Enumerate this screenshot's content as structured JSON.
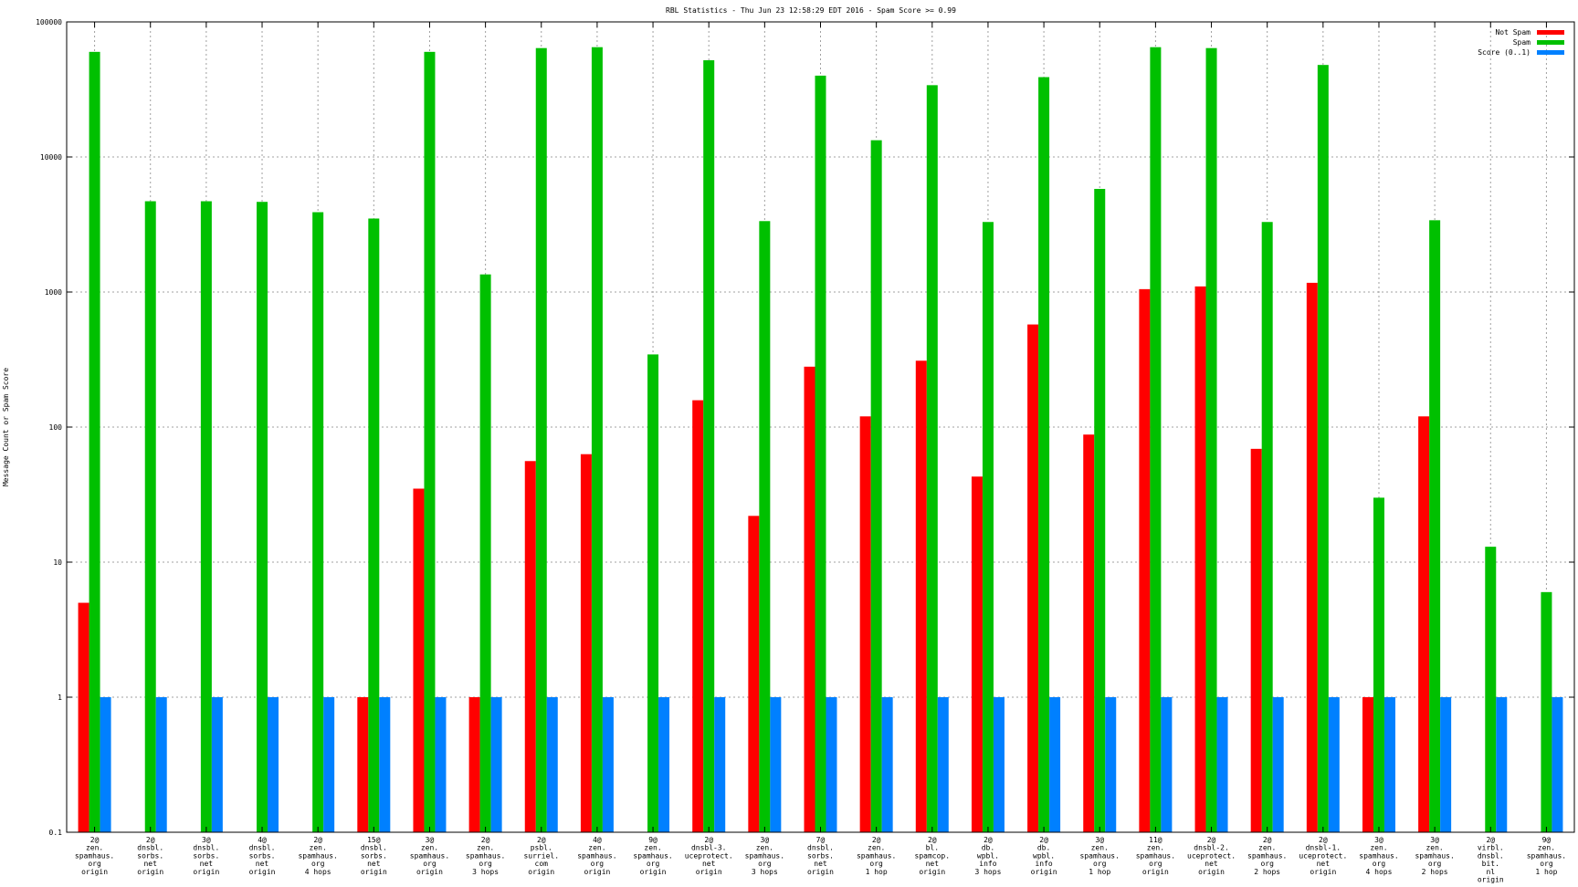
{
  "chart_data": {
    "type": "bar",
    "title": "RBL Statistics - Thu Jun 23 12:58:29 EDT 2016 - Spam Score >= 0.99",
    "ylabel": "Message Count or Spam Score",
    "xlabel": "",
    "yscale": "log",
    "ylim": [
      0.1,
      100000
    ],
    "yticks": [
      {
        "value": 0.1,
        "label": "0.1"
      },
      {
        "value": 1,
        "label": "1"
      },
      {
        "value": 10,
        "label": "10"
      },
      {
        "value": 100,
        "label": "100"
      },
      {
        "value": 1000,
        "label": "1000"
      },
      {
        "value": 10000,
        "label": "10000"
      },
      {
        "value": 100000,
        "label": "100000"
      }
    ],
    "grid": true,
    "legend_position": "top-right",
    "categories": [
      [
        "2@",
        "zen.",
        "spamhaus.",
        "org",
        "origin"
      ],
      [
        "2@",
        "dnsbl.",
        "sorbs.",
        "net",
        "origin"
      ],
      [
        "3@",
        "dnsbl.",
        "sorbs.",
        "net",
        "origin"
      ],
      [
        "4@",
        "dnsbl.",
        "sorbs.",
        "net",
        "origin"
      ],
      [
        "2@",
        "zen.",
        "spamhaus.",
        "org",
        "4 hops"
      ],
      [
        "15@",
        "dnsbl.",
        "sorbs.",
        "net",
        "origin"
      ],
      [
        "3@",
        "zen.",
        "spamhaus.",
        "org",
        "origin"
      ],
      [
        "2@",
        "zen.",
        "spamhaus.",
        "org",
        "3 hops"
      ],
      [
        "2@",
        "psbl.",
        "surriel.",
        "com",
        "origin"
      ],
      [
        "4@",
        "zen.",
        "spamhaus.",
        "org",
        "origin"
      ],
      [
        "9@",
        "zen.",
        "spamhaus.",
        "org",
        "origin"
      ],
      [
        "2@",
        "dnsbl-3.",
        "uceprotect.",
        "net",
        "origin"
      ],
      [
        "3@",
        "zen.",
        "spamhaus.",
        "org",
        "3 hops"
      ],
      [
        "7@",
        "dnsbl.",
        "sorbs.",
        "net",
        "origin"
      ],
      [
        "2@",
        "zen.",
        "spamhaus.",
        "org",
        "1 hop"
      ],
      [
        "2@",
        "bl.",
        "spamcop.",
        "net",
        "origin"
      ],
      [
        "2@",
        "db.",
        "wpbl.",
        "info",
        "3 hops"
      ],
      [
        "2@",
        "db.",
        "wpbl.",
        "info",
        "origin"
      ],
      [
        "3@",
        "zen.",
        "spamhaus.",
        "org",
        "1 hop"
      ],
      [
        "11@",
        "zen.",
        "spamhaus.",
        "org",
        "origin"
      ],
      [
        "2@",
        "dnsbl-2.",
        "uceprotect.",
        "net",
        "origin"
      ],
      [
        "2@",
        "zen.",
        "spamhaus.",
        "org",
        "2 hops"
      ],
      [
        "2@",
        "dnsbl-1.",
        "uceprotect.",
        "net",
        "origin"
      ],
      [
        "3@",
        "zen.",
        "spamhaus.",
        "org",
        "4 hops"
      ],
      [
        "3@",
        "zen.",
        "spamhaus.",
        "org",
        "2 hops"
      ],
      [
        "2@",
        "virbl.",
        "dnsbl.",
        "bit.",
        "nl",
        "origin"
      ],
      [
        "9@",
        "zen.",
        "spamhaus.",
        "org",
        "1 hop"
      ]
    ],
    "series": [
      {
        "name": "Not Spam",
        "color": "#ff0000",
        "values": [
          5,
          null,
          null,
          null,
          null,
          1,
          35,
          1,
          56,
          63,
          null,
          158,
          22,
          280,
          120,
          310,
          43,
          575,
          88,
          1050,
          1100,
          69,
          1170,
          1,
          120,
          null,
          null
        ]
      },
      {
        "name": "Spam",
        "color": "#00c000",
        "values": [
          60000,
          4700,
          4700,
          4650,
          3900,
          3500,
          60000,
          1350,
          64000,
          65000,
          345,
          52000,
          3350,
          40000,
          13300,
          34000,
          3300,
          39000,
          5800,
          65000,
          64000,
          3300,
          48000,
          30,
          3400,
          13,
          6
        ]
      },
      {
        "name": "Score (0..1)",
        "color": "#0080ff",
        "values": [
          1,
          1,
          1,
          1,
          1,
          1,
          1,
          1,
          1,
          1,
          1,
          1,
          1,
          1,
          1,
          1,
          1,
          1,
          1,
          1,
          1,
          1,
          1,
          1,
          1,
          1,
          1
        ]
      }
    ]
  }
}
